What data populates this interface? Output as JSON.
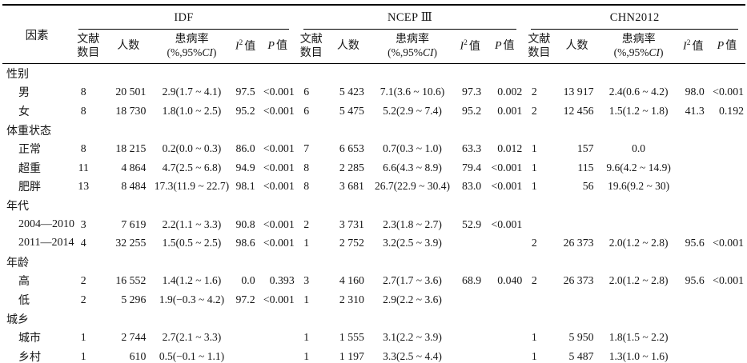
{
  "table": {
    "factor_header": "因素",
    "groups": [
      {
        "name": "IDF"
      },
      {
        "name": "NCEP Ⅲ"
      },
      {
        "name": "CHN2012"
      }
    ],
    "subheaders": {
      "studies_line1": "文献",
      "studies_line2": "数目",
      "people": "人数",
      "prevalence_line1": "患病率",
      "prev_paren_open": "(%,95%",
      "prev_ci": "CI",
      "prev_paren_close": ")",
      "i2_italic": "I",
      "i2_sup": "2",
      "i2_rest": "值",
      "p_italic": "P",
      "p_rest": "值"
    },
    "rows": [
      {
        "type": "section",
        "label": "性别"
      },
      {
        "type": "data",
        "label": "男",
        "cells": [
          "8",
          "20 501",
          "2.9(1.7 ~ 4.1)",
          "97.5",
          "<0.001",
          "6",
          "5 423",
          "7.1(3.6 ~ 10.6)",
          "97.3",
          "0.002",
          "2",
          "13 917",
          "2.4(0.6 ~ 4.2)",
          "98.0",
          "<0.001"
        ]
      },
      {
        "type": "data",
        "label": "女",
        "cells": [
          "8",
          "18 730",
          "1.8(1.0 ~ 2.5)",
          "95.2",
          "<0.001",
          "6",
          "5 475",
          "5.2(2.9 ~ 7.4)",
          "95.2",
          "0.001",
          "2",
          "12 456",
          "1.5(1.2 ~ 1.8)",
          "41.3",
          "0.192"
        ]
      },
      {
        "type": "section",
        "label": "体重状态"
      },
      {
        "type": "data",
        "label": "正常",
        "cells": [
          "8",
          "18 215",
          "0.2(0.0 ~ 0.3)",
          "86.0",
          "<0.001",
          "7",
          "6 653",
          "0.7(0.3 ~ 1.0)",
          "63.3",
          "0.012",
          "1",
          "157",
          "0.0",
          "",
          ""
        ]
      },
      {
        "type": "data",
        "label": "超重",
        "cells": [
          "11",
          "4 864",
          "4.7(2.5 ~ 6.8)",
          "94.9",
          "<0.001",
          "8",
          "2 285",
          "6.6(4.3 ~ 8.9)",
          "79.4",
          "<0.001",
          "1",
          "115",
          "9.6(4.2 ~ 14.9)",
          "",
          ""
        ]
      },
      {
        "type": "data",
        "label": "肥胖",
        "cells": [
          "13",
          "8 484",
          "17.3(11.9 ~ 22.7)",
          "98.1",
          "<0.001",
          "8",
          "3 681",
          "26.7(22.9 ~ 30.4)",
          "83.0",
          "<0.001",
          "1",
          "56",
          "19.6(9.2 ~ 30)",
          "",
          ""
        ]
      },
      {
        "type": "section",
        "label": "年代"
      },
      {
        "type": "data",
        "label": "2004—2010",
        "cells": [
          "3",
          "7 619",
          "2.2(1.1 ~ 3.3)",
          "90.8",
          "<0.001",
          "2",
          "3 731",
          "2.3(1.8 ~ 2.7)",
          "52.9",
          "<0.001",
          "",
          "",
          "",
          "",
          ""
        ]
      },
      {
        "type": "data",
        "label": "2011—2014",
        "cells": [
          "4",
          "32 255",
          "1.5(0.5 ~ 2.5)",
          "98.6",
          "<0.001",
          "1",
          "2 752",
          "3.2(2.5 ~ 3.9)",
          "",
          "",
          "2",
          "26 373",
          "2.0(1.2 ~ 2.8)",
          "95.6",
          "<0.001"
        ]
      },
      {
        "type": "section",
        "label": "年龄"
      },
      {
        "type": "data",
        "label": "高",
        "cells": [
          "2",
          "16 552",
          "1.4(1.2 ~ 1.6)",
          "0.0",
          "0.393",
          "3",
          "4 160",
          "2.7(1.7 ~ 3.6)",
          "68.9",
          "0.040",
          "2",
          "26 373",
          "2.0(1.2 ~ 2.8)",
          "95.6",
          "<0.001"
        ]
      },
      {
        "type": "data",
        "label": "低",
        "cells": [
          "2",
          "5 296",
          "1.9(−0.3 ~ 4.2)",
          "97.2",
          "<0.001",
          "1",
          "2 310",
          "2.9(2.2 ~ 3.6)",
          "",
          "",
          "",
          "",
          "",
          "",
          ""
        ]
      },
      {
        "type": "section",
        "label": "城乡"
      },
      {
        "type": "data",
        "label": "城市",
        "cells": [
          "1",
          "2 744",
          "2.7(2.1 ~ 3.3)",
          "",
          "",
          "1",
          "1 555",
          "3.1(2.2 ~ 3.9)",
          "",
          "",
          "1",
          "5 950",
          "1.8(1.5 ~ 2.2)",
          "",
          ""
        ]
      },
      {
        "type": "data",
        "label": "乡村",
        "cells": [
          "1",
          "610",
          "0.5(−0.1 ~ 1.1)",
          "",
          "",
          "1",
          "1 197",
          "3.3(2.5 ~ 4.4)",
          "",
          "",
          "1",
          "5 487",
          "1.3(1.0 ~ 1.6)",
          "",
          ""
        ]
      }
    ]
  }
}
